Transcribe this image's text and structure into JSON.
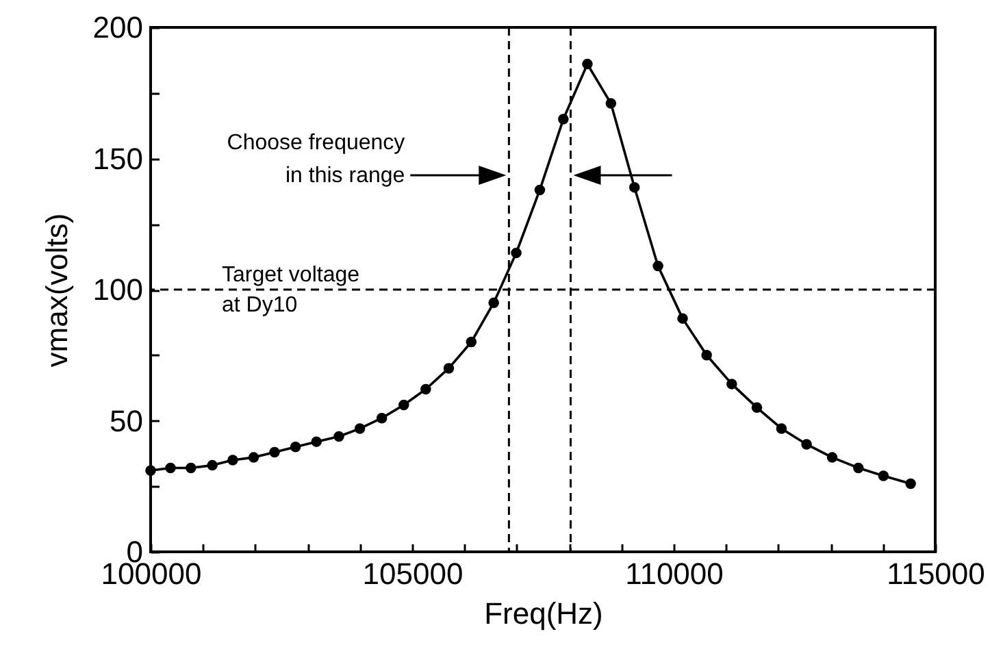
{
  "chart_data": {
    "type": "line",
    "xlabel": "Freq(Hz)",
    "ylabel": "vmax(volts)",
    "x": [
      100000,
      100380,
      100770,
      101180,
      101570,
      101970,
      102370,
      102770,
      103170,
      103600,
      104000,
      104420,
      104840,
      105260,
      105700,
      106130,
      106560,
      106990,
      107440,
      107890,
      108350,
      108800,
      109250,
      109700,
      110170,
      110630,
      111110,
      111590,
      112060,
      112540,
      113030,
      113530,
      114010,
      114530
    ],
    "series": [
      {
        "color": "#000000",
        "values": [
          31,
          32,
          32,
          33,
          35,
          36,
          38,
          40,
          42,
          44,
          47,
          51,
          56,
          62,
          70,
          80,
          95,
          114,
          138,
          165,
          186,
          171,
          139,
          109,
          89,
          75,
          64,
          55,
          47,
          41,
          36,
          32,
          29,
          26
        ]
      }
    ],
    "xlim": [
      100000,
      115000
    ],
    "ylim": [
      0,
      200
    ],
    "xticks": [
      100000,
      {
        "value": 101000,
        "label": null
      },
      {
        "value": 102000,
        "label": null
      },
      {
        "value": 103000,
        "label": null
      },
      {
        "value": 104000,
        "label": null
      },
      105000,
      {
        "value": 106000,
        "label": null
      },
      {
        "value": 107000,
        "label": null
      },
      {
        "value": 108000,
        "label": null
      },
      {
        "value": 109000,
        "label": null
      },
      110000,
      {
        "value": 111000,
        "label": null
      },
      {
        "value": 112000,
        "label": null
      },
      {
        "value": 113000,
        "label": null
      },
      {
        "value": 114000,
        "label": null
      },
      115000
    ],
    "yticks": [
      0,
      {
        "value": 25,
        "label": null
      },
      50,
      {
        "value": 75,
        "label": null
      },
      100,
      {
        "value": 125,
        "label": null
      },
      150,
      {
        "value": 175,
        "label": null
      },
      200
    ],
    "grid": false,
    "marker": "circle",
    "line_style": "solid",
    "ref_lines": [
      {
        "axis": "x",
        "value": 106850,
        "color": "#000000",
        "line_style": "dashed"
      },
      {
        "axis": "x",
        "value": 108030,
        "color": "#000000",
        "line_style": "dashed"
      },
      {
        "axis": "y",
        "value": 100,
        "label": "Target voltage\nat Dy10",
        "color": "#000000",
        "line_style": "dashed"
      }
    ],
    "annotations": [
      "Choose frequency\nin this range"
    ]
  }
}
